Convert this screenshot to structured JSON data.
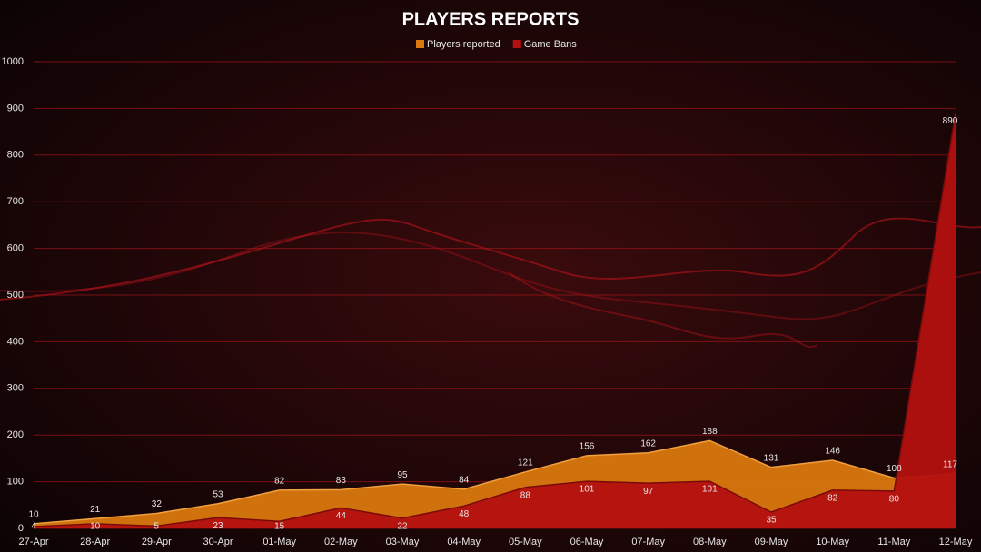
{
  "chart_data": {
    "type": "area",
    "title": "PLAYERS REPORTS",
    "categories": [
      "27-Apr",
      "28-Apr",
      "29-Apr",
      "30-Apr",
      "01-May",
      "02-May",
      "03-May",
      "04-May",
      "05-May",
      "06-May",
      "07-May",
      "08-May",
      "09-May",
      "10-May",
      "11-May",
      "12-May"
    ],
    "series": [
      {
        "name": "Players reported",
        "color": "#d9780f",
        "values": [
          10,
          21,
          32,
          53,
          82,
          83,
          95,
          84,
          121,
          156,
          162,
          188,
          131,
          146,
          108,
          117
        ]
      },
      {
        "name": "Game Bans",
        "color": "#b3100f",
        "values": [
          4,
          10,
          5,
          23,
          15,
          44,
          22,
          48,
          88,
          101,
          97,
          101,
          35,
          82,
          80,
          890
        ]
      }
    ],
    "ylim": [
      0,
      1000
    ],
    "yticks": [
      0,
      100,
      200,
      300,
      400,
      500,
      600,
      700,
      800,
      900,
      1000
    ],
    "grid": true
  }
}
